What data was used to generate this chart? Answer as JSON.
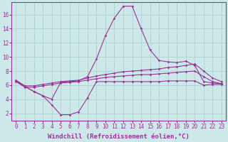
{
  "background_color": "#cce8e8",
  "line_color": "#993399",
  "grid_color": "#aacccc",
  "xlabel": "Windchill (Refroidissement éolien,°C)",
  "xlabel_fontsize": 6.5,
  "xtick_fontsize": 5.5,
  "ytick_fontsize": 5.5,
  "xlim": [
    -0.5,
    23.5
  ],
  "ylim": [
    1.0,
    17.8
  ],
  "yticks": [
    2,
    4,
    6,
    8,
    10,
    12,
    14,
    16
  ],
  "xticks": [
    0,
    1,
    2,
    3,
    4,
    5,
    6,
    7,
    8,
    9,
    10,
    11,
    12,
    13,
    14,
    15,
    16,
    17,
    18,
    19,
    20,
    21,
    22,
    23
  ],
  "line1_x": [
    0,
    1,
    2,
    3,
    4,
    5,
    6,
    7,
    8,
    9,
    10,
    11,
    12,
    13,
    14,
    15,
    16,
    17,
    18,
    19,
    20,
    21,
    22,
    23
  ],
  "line1_y": [
    6.6,
    5.8,
    5.1,
    4.5,
    4.0,
    6.4,
    6.5,
    6.6,
    7.2,
    9.7,
    13.0,
    15.5,
    17.2,
    17.2,
    14.0,
    11.0,
    9.5,
    9.3,
    9.2,
    9.4,
    8.8,
    6.5,
    6.3,
    6.2
  ],
  "line2_x": [
    0,
    1,
    2,
    3,
    4,
    5,
    6,
    7,
    8,
    9,
    10,
    11,
    12,
    13,
    14,
    15,
    16,
    17,
    18,
    19,
    20,
    21,
    22,
    23
  ],
  "line2_y": [
    6.6,
    5.8,
    5.1,
    4.5,
    3.2,
    1.8,
    1.8,
    2.2,
    4.2,
    6.5,
    6.5,
    6.5,
    6.5,
    6.5,
    6.5,
    6.5,
    6.5,
    6.6,
    6.6,
    6.6,
    6.6,
    6.0,
    6.1,
    6.1
  ],
  "line3_x": [
    0,
    1,
    2,
    3,
    4,
    5,
    6,
    7,
    8,
    9,
    10,
    11,
    12,
    13,
    14,
    15,
    16,
    17,
    18,
    19,
    20,
    21,
    22,
    23
  ],
  "line3_y": [
    6.7,
    5.9,
    5.9,
    6.1,
    6.3,
    6.5,
    6.6,
    6.7,
    7.0,
    7.3,
    7.5,
    7.7,
    7.9,
    8.0,
    8.1,
    8.2,
    8.3,
    8.5,
    8.6,
    8.8,
    9.0,
    8.0,
    7.0,
    6.5
  ],
  "line4_x": [
    0,
    1,
    2,
    3,
    4,
    5,
    6,
    7,
    8,
    9,
    10,
    11,
    12,
    13,
    14,
    15,
    16,
    17,
    18,
    19,
    20,
    21,
    22,
    23
  ],
  "line4_y": [
    6.5,
    5.7,
    5.7,
    5.9,
    6.1,
    6.3,
    6.4,
    6.5,
    6.7,
    6.9,
    7.1,
    7.2,
    7.3,
    7.4,
    7.5,
    7.5,
    7.6,
    7.7,
    7.8,
    7.9,
    8.0,
    7.2,
    6.5,
    6.2
  ]
}
